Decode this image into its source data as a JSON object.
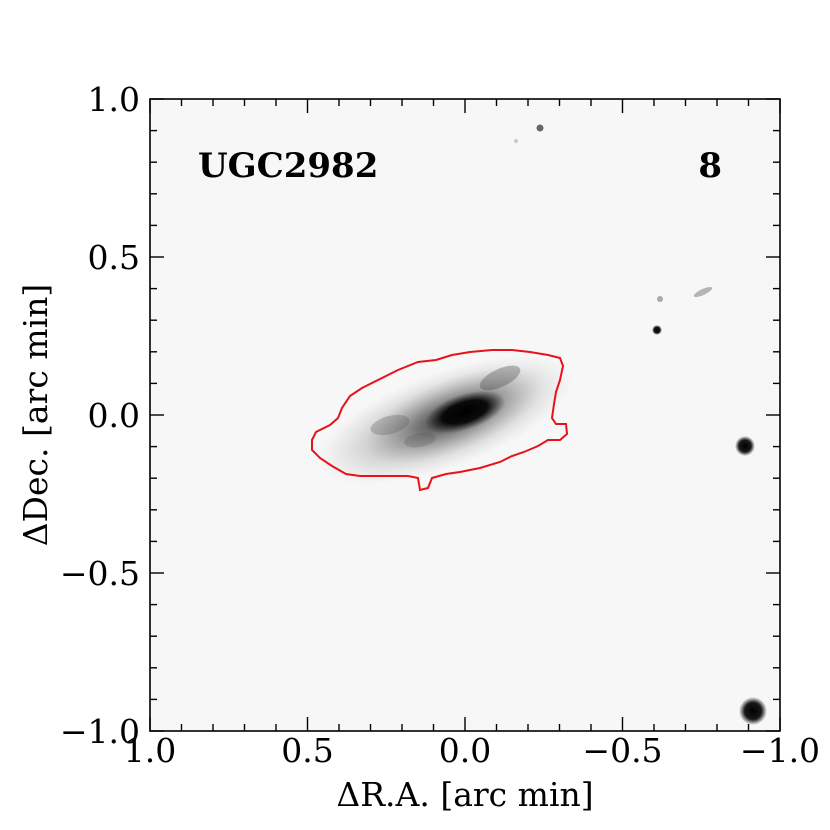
{
  "panel": {
    "galaxy_name": "UGC2982",
    "panel_number": "8"
  },
  "axes": {
    "xlabel": "ΔR.A. [arc min]",
    "ylabel": "ΔDec. [arc min]",
    "xlim": [
      1.0,
      -1.0
    ],
    "ylim": [
      -1.0,
      1.0
    ],
    "x_ticks": [
      {
        "value": 1.0,
        "label": "1.0"
      },
      {
        "value": 0.5,
        "label": "0.5"
      },
      {
        "value": 0.0,
        "label": "0.0"
      },
      {
        "value": -0.5,
        "label": "−0.5"
      },
      {
        "value": -1.0,
        "label": "−1.0"
      }
    ],
    "y_ticks": [
      {
        "value": 1.0,
        "label": "1.0"
      },
      {
        "value": 0.5,
        "label": "0.5"
      },
      {
        "value": 0.0,
        "label": "0.0"
      },
      {
        "value": -0.5,
        "label": "−0.5"
      },
      {
        "value": -1.0,
        "label": "−1.0"
      }
    ]
  },
  "image": {
    "colormap": "inverted grayscale",
    "contour_color": "#e8121b",
    "background_color": "#f7f7f7"
  }
}
